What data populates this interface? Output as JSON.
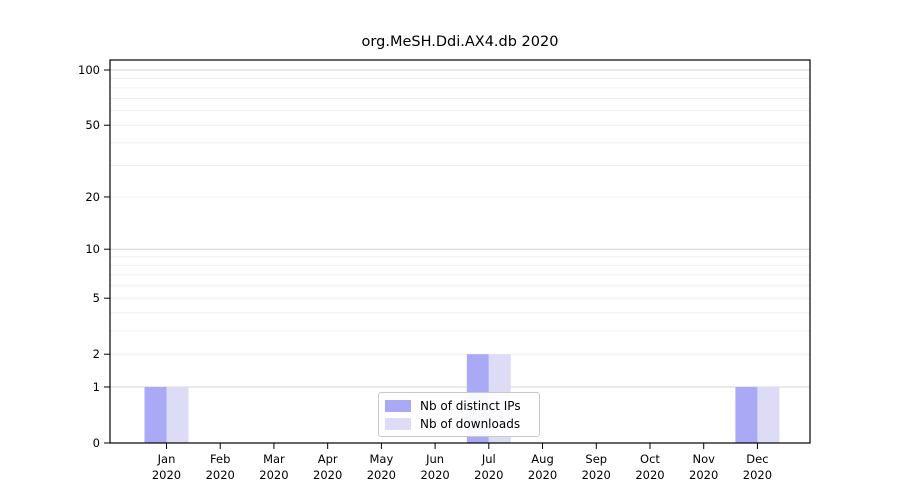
{
  "chart_data": {
    "type": "bar",
    "title": "org.MeSH.Ddi.AX4.db 2020",
    "categories": [
      "Jan",
      "Feb",
      "Mar",
      "Apr",
      "May",
      "Jun",
      "Jul",
      "Aug",
      "Sep",
      "Oct",
      "Nov",
      "Dec"
    ],
    "category_year": "2020",
    "series": [
      {
        "name": "Nb of distinct IPs",
        "color": "#a9a9f5",
        "values": [
          1,
          0,
          0,
          0,
          0,
          0,
          2,
          0,
          0,
          0,
          0,
          1
        ]
      },
      {
        "name": "Nb of downloads",
        "color": "#dcdcf7",
        "values": [
          1,
          0,
          0,
          0,
          0,
          0,
          2,
          0,
          0,
          0,
          0,
          1
        ]
      }
    ],
    "yscale": "log1p",
    "ylim": [
      0,
      114
    ],
    "yticks": [
      0,
      1,
      2,
      5,
      10,
      20,
      50,
      100
    ],
    "grid": {
      "major": [
        1,
        10,
        100
      ],
      "minor": [
        2,
        3,
        4,
        5,
        6,
        7,
        8,
        9,
        20,
        30,
        40,
        50,
        60,
        70,
        80,
        90
      ]
    },
    "grid_major_color": "#d6d6d6",
    "grid_minor_color": "#efefef",
    "axis_color": "#000000",
    "legend_position": "bottom-center"
  }
}
